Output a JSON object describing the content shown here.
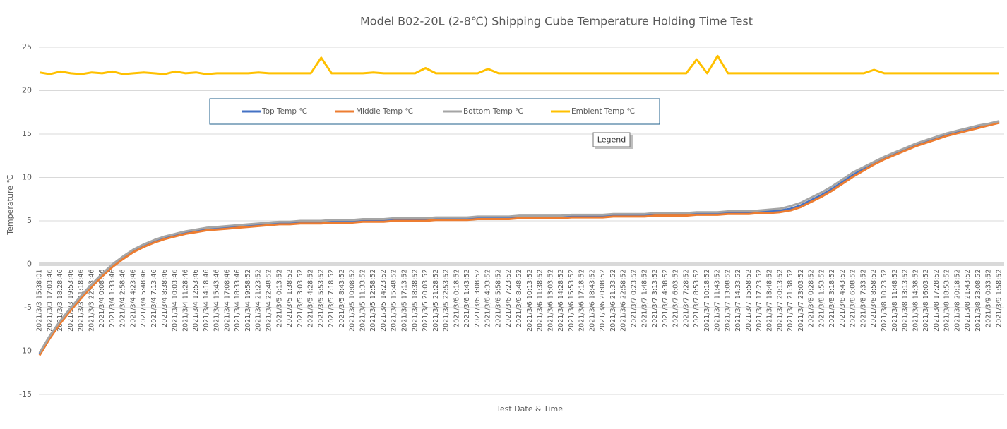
{
  "chart_data": {
    "type": "line",
    "title": "Model B02-20L (2-8℃) Shipping Cube Temperature Holding Time Test",
    "x_label": "Test Date & Time",
    "y_label": "Temperature ℃",
    "tooltip": "Legend",
    "legend": "top-left",
    "grid": true,
    "ylim": [
      -15,
      25
    ],
    "yticks": [
      -15,
      -10,
      -5,
      0,
      5,
      10,
      15,
      20,
      25
    ],
    "categories": [
      "2021/3/3 15:38:01",
      "2021/3/3 17:03:46",
      "2021/3/3 18:28:46",
      "2021/3/3 19:53:46",
      "2021/3/3 21:18:46",
      "2021/3/3 22:43:46",
      "2021/3/4 0:08:46",
      "2021/3/4 1:33:46",
      "2021/3/4 2:58:46",
      "2021/3/4 4:23:46",
      "2021/3/4 5:48:46",
      "2021/3/4 7:13:46",
      "2021/3/4 8:38:46",
      "2021/3/4 10:03:46",
      "2021/3/4 11:28:46",
      "2021/3/4 12:53:46",
      "2021/3/4 14:18:46",
      "2021/3/4 15:43:46",
      "2021/3/4 17:08:46",
      "2021/3/4 18:33:46",
      "2021/3/4 19:58:52",
      "2021/3/4 21:23:52",
      "2021/3/4 22:48:52",
      "2021/3/5 0:13:52",
      "2021/3/5 1:38:52",
      "2021/3/5 3:03:52",
      "2021/3/5 4:28:52",
      "2021/3/5 5:53:52",
      "2021/3/5 7:18:52",
      "2021/3/5 8:43:52",
      "2021/3/5 10:08:52",
      "2021/3/5 11:33:52",
      "2021/3/5 12:58:52",
      "2021/3/5 14:23:52",
      "2021/3/5 15:48:52",
      "2021/3/5 17:13:52",
      "2021/3/5 18:38:52",
      "2021/3/5 20:03:52",
      "2021/3/5 21:28:52",
      "2021/3/5 22:53:52",
      "2021/3/6 0:18:52",
      "2021/3/6 1:43:52",
      "2021/3/6 3:08:52",
      "2021/3/6 4:33:52",
      "2021/3/6 5:58:52",
      "2021/3/6 7:23:52",
      "2021/3/6 8:48:52",
      "2021/3/6 10:13:52",
      "2021/3/6 11:38:52",
      "2021/3/6 13:03:52",
      "2021/3/6 14:28:52",
      "2021/3/6 15:53:52",
      "2021/3/6 17:18:52",
      "2021/3/6 18:43:52",
      "2021/3/6 20:08:52",
      "2021/3/6 21:33:52",
      "2021/3/6 22:58:52",
      "2021/3/7 0:23:52",
      "2021/3/7 1:48:52",
      "2021/3/7 3:13:52",
      "2021/3/7 4:38:52",
      "2021/3/7 6:03:52",
      "2021/3/7 7:28:52",
      "2021/3/7 8:53:52",
      "2021/3/7 10:18:52",
      "2021/3/7 11:43:52",
      "2021/3/7 13:08:52",
      "2021/3/7 14:33:52",
      "2021/3/7 15:58:52",
      "2021/3/7 17:23:52",
      "2021/3/7 18:48:52",
      "2021/3/7 20:13:52",
      "2021/3/7 21:38:52",
      "2021/3/7 23:03:52",
      "2021/3/8 0:28:52",
      "2021/3/8 1:53:52",
      "2021/3/8 3:18:52",
      "2021/3/8 4:43:52",
      "2021/3/8 6:08:52",
      "2021/3/8 7:33:52",
      "2021/3/8 8:58:52",
      "2021/3/8 10:23:52",
      "2021/3/8 11:48:52",
      "2021/3/8 13:13:52",
      "2021/3/8 14:38:52",
      "2021/3/8 16:03:52",
      "2021/3/8 17:28:52",
      "2021/3/8 18:53:52",
      "2021/3/8 20:18:52",
      "2021/3/8 21:43:52",
      "2021/3/8 23:08:52",
      "2021/3/9 0:33:52",
      "2021/3/9 1:58:52"
    ],
    "series": [
      {
        "name": "Top Temp ℃",
        "color": "#4472c4",
        "values": [
          -10.3,
          -8.3,
          -6.6,
          -5.1,
          -3.7,
          -2.4,
          -1.2,
          -0.1,
          0.8,
          1.6,
          2.2,
          2.7,
          3.1,
          3.4,
          3.7,
          3.9,
          4.1,
          4.2,
          4.3,
          4.4,
          4.5,
          4.6,
          4.7,
          4.8,
          4.8,
          4.9,
          4.9,
          4.9,
          5.0,
          5.0,
          5.0,
          5.1,
          5.1,
          5.1,
          5.2,
          5.2,
          5.2,
          5.2,
          5.3,
          5.3,
          5.3,
          5.3,
          5.4,
          5.4,
          5.4,
          5.4,
          5.5,
          5.5,
          5.5,
          5.5,
          5.5,
          5.6,
          5.6,
          5.6,
          5.6,
          5.7,
          5.7,
          5.7,
          5.7,
          5.8,
          5.8,
          5.8,
          5.8,
          5.9,
          5.9,
          5.9,
          6.0,
          6.0,
          6.0,
          6.1,
          6.1,
          6.2,
          6.4,
          6.8,
          7.4,
          8.0,
          8.7,
          9.5,
          10.3,
          11.0,
          11.7,
          12.3,
          12.8,
          13.3,
          13.8,
          14.2,
          14.6,
          15.0,
          15.3,
          15.6,
          15.9,
          16.1,
          16.4
        ]
      },
      {
        "name": "Middle Temp ℃",
        "color": "#ed7d31",
        "values": [
          -10.5,
          -8.5,
          -6.8,
          -5.3,
          -3.9,
          -2.6,
          -1.4,
          -0.3,
          0.6,
          1.4,
          2.0,
          2.5,
          2.9,
          3.2,
          3.5,
          3.7,
          3.9,
          4.0,
          4.1,
          4.2,
          4.3,
          4.4,
          4.5,
          4.6,
          4.6,
          4.7,
          4.7,
          4.7,
          4.8,
          4.8,
          4.8,
          4.9,
          4.9,
          4.9,
          5.0,
          5.0,
          5.0,
          5.0,
          5.1,
          5.1,
          5.1,
          5.1,
          5.2,
          5.2,
          5.2,
          5.2,
          5.3,
          5.3,
          5.3,
          5.3,
          5.3,
          5.4,
          5.4,
          5.4,
          5.4,
          5.5,
          5.5,
          5.5,
          5.5,
          5.6,
          5.6,
          5.6,
          5.6,
          5.7,
          5.7,
          5.7,
          5.8,
          5.8,
          5.8,
          5.9,
          5.9,
          6.0,
          6.2,
          6.6,
          7.2,
          7.8,
          8.5,
          9.3,
          10.1,
          10.8,
          11.5,
          12.1,
          12.6,
          13.1,
          13.6,
          14.0,
          14.4,
          14.8,
          15.1,
          15.4,
          15.7,
          16.0,
          16.3
        ]
      },
      {
        "name": "Bottom Temp ℃",
        "color": "#a5a5a5",
        "values": [
          -10.2,
          -8.2,
          -6.5,
          -5.0,
          -3.6,
          -2.3,
          -1.1,
          0.0,
          0.9,
          1.7,
          2.3,
          2.8,
          3.2,
          3.5,
          3.8,
          4.0,
          4.2,
          4.3,
          4.4,
          4.5,
          4.6,
          4.7,
          4.8,
          4.9,
          4.9,
          5.0,
          5.0,
          5.0,
          5.1,
          5.1,
          5.1,
          5.2,
          5.2,
          5.2,
          5.3,
          5.3,
          5.3,
          5.3,
          5.4,
          5.4,
          5.4,
          5.4,
          5.5,
          5.5,
          5.5,
          5.5,
          5.6,
          5.6,
          5.6,
          5.6,
          5.6,
          5.7,
          5.7,
          5.7,
          5.7,
          5.8,
          5.8,
          5.8,
          5.8,
          5.9,
          5.9,
          5.9,
          5.9,
          6.0,
          6.0,
          6.0,
          6.1,
          6.1,
          6.1,
          6.2,
          6.3,
          6.4,
          6.7,
          7.1,
          7.7,
          8.3,
          9.0,
          9.8,
          10.6,
          11.2,
          11.8,
          12.4,
          12.9,
          13.4,
          13.9,
          14.3,
          14.7,
          15.1,
          15.4,
          15.7,
          16.0,
          16.2,
          16.5
        ]
      },
      {
        "name": "Embient Temp ℃",
        "color": "#ffc000",
        "values": [
          22.1,
          21.9,
          22.2,
          22.0,
          21.9,
          22.1,
          22.0,
          22.2,
          21.9,
          22.0,
          22.1,
          22.0,
          21.9,
          22.2,
          22.0,
          22.1,
          21.9,
          22.0,
          22.0,
          22.0,
          22.0,
          22.1,
          22.0,
          22.0,
          22.0,
          22.0,
          22.0,
          23.8,
          22.0,
          22.0,
          22.0,
          22.0,
          22.1,
          22.0,
          22.0,
          22.0,
          22.0,
          22.6,
          22.0,
          22.0,
          22.0,
          22.0,
          22.0,
          22.5,
          22.0,
          22.0,
          22.0,
          22.0,
          22.0,
          22.0,
          22.0,
          22.0,
          22.0,
          22.0,
          22.0,
          22.0,
          22.0,
          22.0,
          22.0,
          22.0,
          22.0,
          22.0,
          22.0,
          23.6,
          22.0,
          24.0,
          22.0,
          22.0,
          22.0,
          22.0,
          22.0,
          22.0,
          22.0,
          22.0,
          22.0,
          22.0,
          22.0,
          22.0,
          22.0,
          22.0,
          22.4,
          22.0,
          22.0,
          22.0,
          22.0,
          22.0,
          22.0,
          22.0,
          22.0,
          22.0,
          22.0,
          22.0,
          22.0
        ]
      }
    ]
  }
}
